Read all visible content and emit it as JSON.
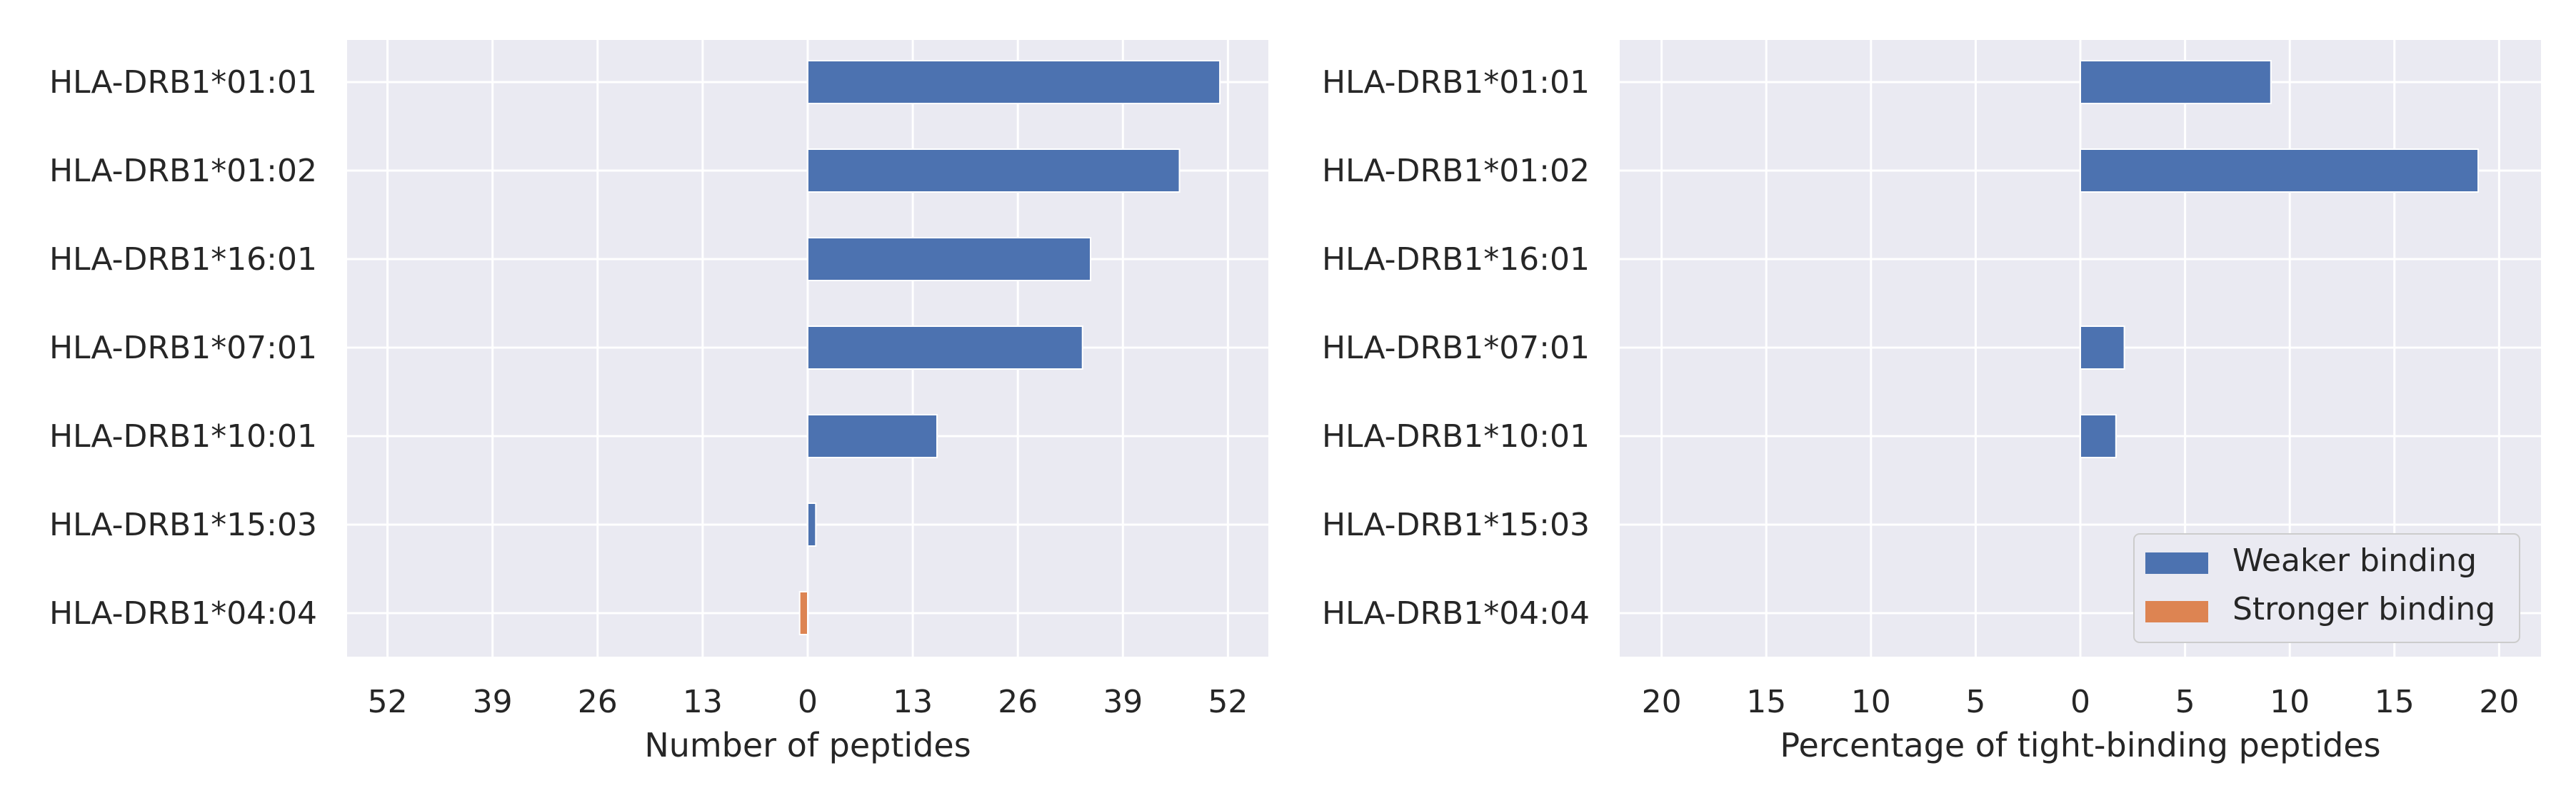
{
  "chart_data": [
    {
      "type": "bar",
      "orientation": "horizontal",
      "categories": [
        "HLA-DRB1*01:01",
        "HLA-DRB1*01:02",
        "HLA-DRB1*16:01",
        "HLA-DRB1*07:01",
        "HLA-DRB1*10:01",
        "HLA-DRB1*15:03",
        "HLA-DRB1*04:04"
      ],
      "series": [
        {
          "name": "Weaker binding",
          "values": [
            51,
            46,
            35,
            34,
            16,
            1,
            0
          ]
        },
        {
          "name": "Stronger binding",
          "values": [
            0,
            0,
            0,
            0,
            0,
            0,
            -1
          ]
        }
      ],
      "xlabel": "Number of peptides",
      "xticks": [
        -52,
        -39,
        -26,
        -13,
        0,
        13,
        26,
        39,
        52
      ],
      "xtick_labels": [
        "52",
        "39",
        "26",
        "13",
        "0",
        "13",
        "26",
        "39",
        "52"
      ],
      "xlim": [
        -57,
        57
      ],
      "grid": true,
      "legend": "none"
    },
    {
      "type": "bar",
      "orientation": "horizontal",
      "categories": [
        "HLA-DRB1*01:01",
        "HLA-DRB1*01:02",
        "HLA-DRB1*16:01",
        "HLA-DRB1*07:01",
        "HLA-DRB1*10:01",
        "HLA-DRB1*15:03",
        "HLA-DRB1*04:04"
      ],
      "series": [
        {
          "name": "Weaker binding",
          "values": [
            9.1,
            19.0,
            0,
            2.1,
            1.7,
            0,
            0
          ]
        },
        {
          "name": "Stronger binding",
          "values": [
            0,
            0,
            0,
            0,
            0,
            0,
            0
          ]
        }
      ],
      "xlabel": "Percentage of tight-binding peptides",
      "xticks": [
        -20,
        -15,
        -10,
        -5,
        0,
        5,
        10,
        15,
        20
      ],
      "xtick_labels": [
        "20",
        "15",
        "10",
        "5",
        "0",
        "5",
        "10",
        "15",
        "20"
      ],
      "xlim": [
        -22,
        22
      ],
      "grid": true,
      "legend": "bottom-right"
    }
  ],
  "colors": {
    "weaker": "#4c72b0",
    "stronger": "#dd8452",
    "axes_bg": "#eaeaf2",
    "grid": "#ffffff"
  }
}
